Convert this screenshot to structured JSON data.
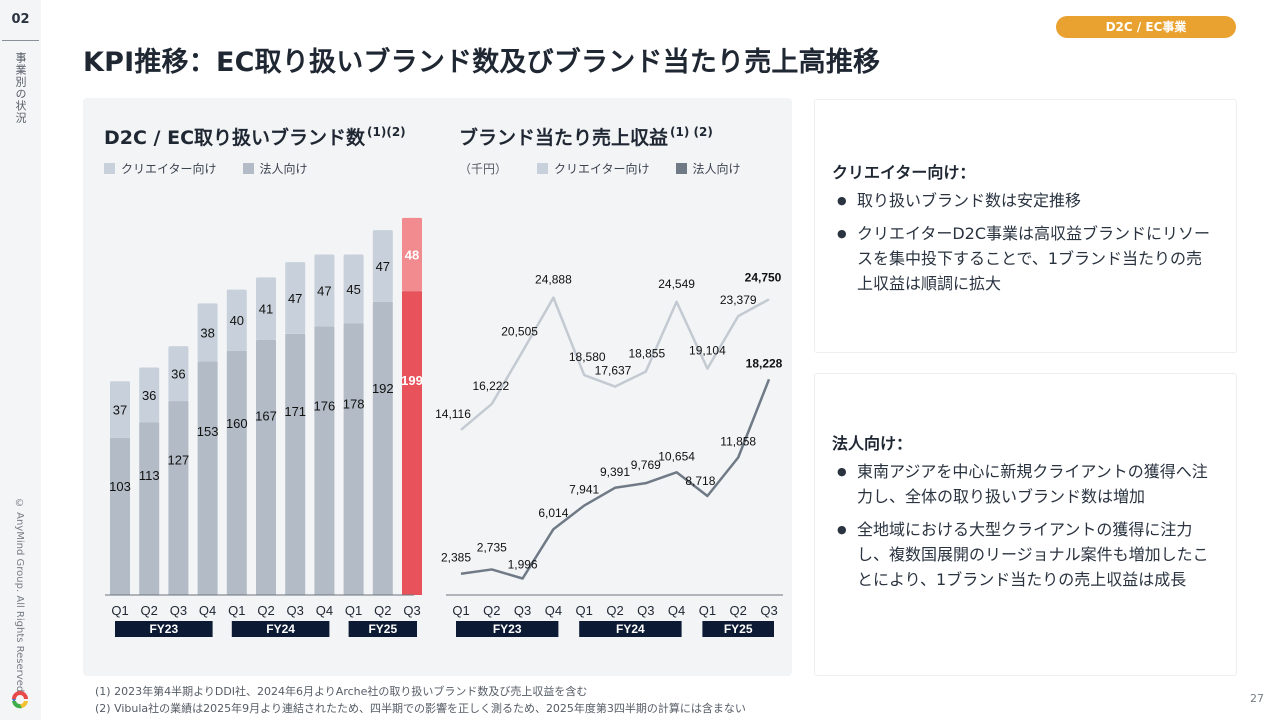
{
  "sidebar": {
    "section_number": "02",
    "section_label": "事業別の状況",
    "copyright": "© AnyMind Group. All Rights Reserved."
  },
  "header": {
    "title": "KPI推移：EC取り扱いブランド数及びブランド当たり売上高推移",
    "badge": "D2C / EC事業"
  },
  "colors": {
    "creator_bar": "#c8d1db",
    "corporate_bar": "#b3bcc6",
    "highlight_creator": "#f28b8f",
    "highlight_corporate": "#e8525a",
    "creator_line": "#c3cad2",
    "corporate_line": "#6f7a86",
    "fy_label_bg": "#0c1a33",
    "badge": "#e9a12f"
  },
  "chart_data": [
    {
      "type": "bar",
      "stacked": true,
      "title": "D2C / EC取り扱いブランド数",
      "title_notes": "(1)(2)",
      "legend": [
        "クリエイター向け",
        "法人向け"
      ],
      "legend_position": "top-left",
      "categories": [
        "Q1",
        "Q2",
        "Q3",
        "Q4",
        "Q1",
        "Q2",
        "Q3",
        "Q4",
        "Q1",
        "Q2",
        "Q3"
      ],
      "fiscal_groups": [
        {
          "label": "FY23",
          "quarters": 4
        },
        {
          "label": "FY24",
          "quarters": 4
        },
        {
          "label": "FY25",
          "quarters": 3
        }
      ],
      "series": [
        {
          "name": "法人向け",
          "values": [
            103,
            113,
            127,
            153,
            160,
            167,
            171,
            176,
            178,
            192,
            199
          ]
        },
        {
          "name": "クリエイター向け",
          "values": [
            37,
            36,
            36,
            38,
            40,
            41,
            47,
            47,
            45,
            47,
            48
          ]
        }
      ],
      "highlight_index": 10,
      "ylim": [
        0,
        260
      ],
      "grid": false
    },
    {
      "type": "line",
      "title": "ブランド当たり売上収益",
      "title_notes": "(1) (2)",
      "unit": "（千円）",
      "legend": [
        "クリエイター向け",
        "法人向け"
      ],
      "legend_position": "top-left",
      "categories": [
        "Q1",
        "Q2",
        "Q3",
        "Q4",
        "Q1",
        "Q2",
        "Q3",
        "Q4",
        "Q1",
        "Q2",
        "Q3"
      ],
      "fiscal_groups": [
        {
          "label": "FY23",
          "quarters": 4
        },
        {
          "label": "FY24",
          "quarters": 4
        },
        {
          "label": "FY25",
          "quarters": 3
        }
      ],
      "series": [
        {
          "name": "クリエイター向け",
          "values": [
            14116,
            16222,
            20505,
            24888,
            18580,
            17637,
            18855,
            24549,
            19104,
            23379,
            24750
          ],
          "labels": [
            "14,116",
            "16,222",
            "20,505",
            "24,888",
            "18,580",
            "17,637",
            "18,855",
            "24,549",
            "19,104",
            "23,379",
            "24,750"
          ]
        },
        {
          "name": "法人向け",
          "values": [
            2385,
            2735,
            1996,
            6014,
            7941,
            9391,
            9769,
            10654,
            8718,
            11858,
            18228
          ],
          "labels": [
            "2,385",
            "2,735",
            "1,996",
            "6,014",
            "7,941",
            "9,391",
            "9,769",
            "10,654",
            "8,718",
            "11,858",
            "18,228"
          ]
        }
      ],
      "ylim": [
        0,
        30000
      ],
      "grid": false
    }
  ],
  "cards": [
    {
      "heading": "クリエイター向け：",
      "bullets": [
        "取り扱いブランド数は安定推移",
        "クリエイターD2C事業は高収益ブランドにリソースを集中投下することで、1ブランド当たりの売上収益は順調に拡大"
      ]
    },
    {
      "heading": "法人向け：",
      "bullets": [
        "東南アジアを中心に新規クライアントの獲得へ注力し、全体の取り扱いブランド数は増加",
        "全地域における大型クライアントの獲得に注力し、複数国展開のリージョナル案件も増加したことにより、1ブランド当たりの売上収益は成長"
      ]
    }
  ],
  "footnotes": [
    "(1) 2023年第4半期よりDDI社、2024年6月よりArche社の取り扱いブランド数及び売上収益を含む",
    "(2) Vibula社の業績は2025年9月より連結されたため、四半期での影響を正しく測るため、2025年度第3四半期の計算には含まない"
  ],
  "page_number": "27"
}
